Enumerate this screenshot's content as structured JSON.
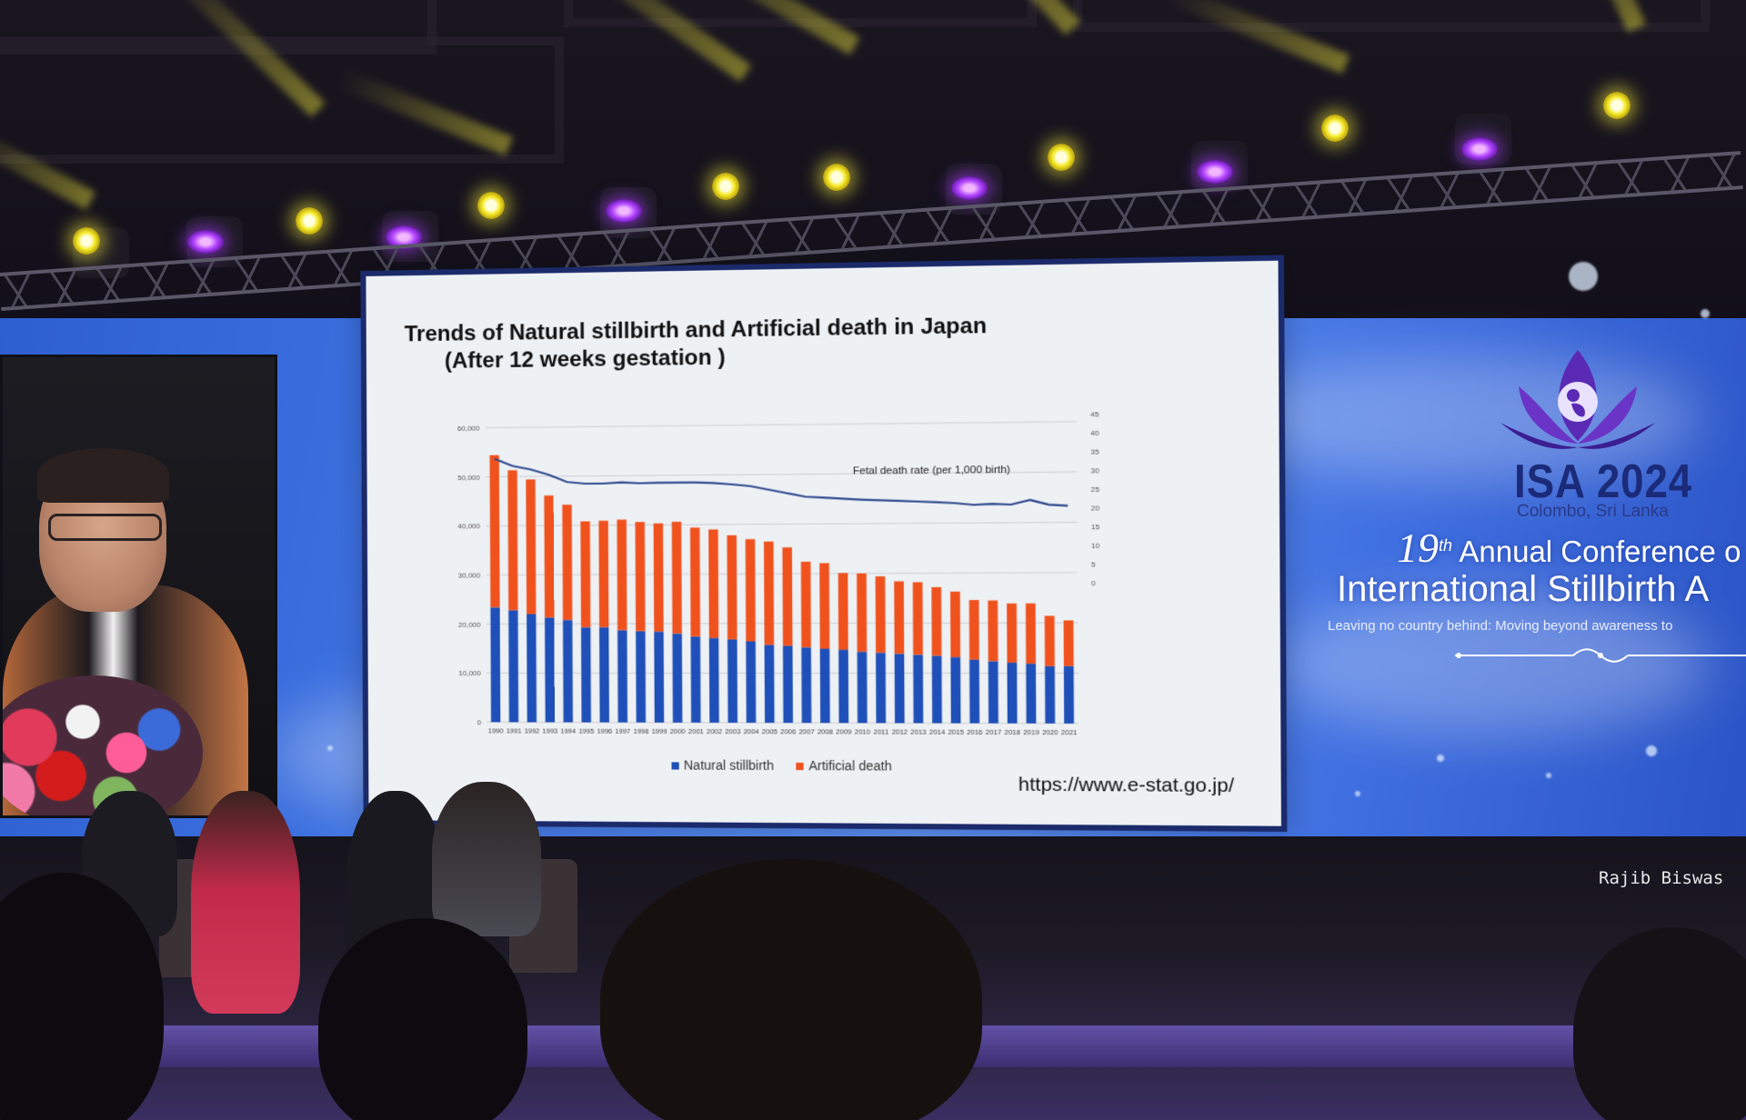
{
  "slide": {
    "title_line1": "Trends of Natural stillbirth and Artificial death in Japan",
    "title_line2": "(After 12 weeks gestation )",
    "source_url": "https://www.e-stat.go.jp/"
  },
  "branding": {
    "logo_text": "ISA 2024",
    "location": "Colombo, Sri Lanka",
    "conference_number": "19",
    "conference_suffix": "th",
    "conference_line1_rest": "Annual Conference o",
    "conference_line2": "International Stillbirth A",
    "tagline": "Leaving no country behind: Moving beyond awareness to"
  },
  "photo_credit": "Rajib Biswas",
  "colors": {
    "natural_stillbirth": "#1f4fb8",
    "artificial_death": "#f0521e",
    "rate_line": "#2f4a8f",
    "slide_border": "#1b2a6a"
  },
  "chart_data": {
    "type": "bar",
    "stacked": true,
    "categories": [
      "1990",
      "1991",
      "1992",
      "1993",
      "1994",
      "1995",
      "1996",
      "1997",
      "1998",
      "1999",
      "2000",
      "2001",
      "2002",
      "2003",
      "2004",
      "2005",
      "2006",
      "2007",
      "2008",
      "2009",
      "2010",
      "2011",
      "2012",
      "2013",
      "2014",
      "2015",
      "2016",
      "2017",
      "2018",
      "2019",
      "2020",
      "2021"
    ],
    "series": [
      {
        "name": "Natural stillbirth",
        "values": [
          23400,
          22800,
          22000,
          21300,
          20800,
          19300,
          19300,
          18700,
          18500,
          18400,
          18000,
          17400,
          17100,
          16800,
          16400,
          15700,
          15500,
          15200,
          14900,
          14700,
          14300,
          14100,
          13900,
          13700,
          13500,
          13200,
          12700,
          12400,
          12100,
          11900,
          11400,
          11400
        ]
      },
      {
        "name": "Artificial death",
        "values": [
          31000,
          28500,
          27400,
          24800,
          23400,
          21500,
          21600,
          22400,
          22100,
          21900,
          22600,
          22000,
          21900,
          21000,
          20600,
          20800,
          19800,
          17200,
          17200,
          15400,
          15700,
          15300,
          14500,
          14500,
          13700,
          13100,
          11900,
          12100,
          11800,
          12000,
          10000,
          9100
        ]
      }
    ],
    "line_series": {
      "annotation": "Fetal death rate (per 1,000 birth)",
      "values": [
        34.5,
        32.5,
        31.5,
        30,
        28,
        27.5,
        27.5,
        27.8,
        27.5,
        27.6,
        27.6,
        27.6,
        27.4,
        27,
        26.5,
        25.5,
        24.5,
        23.5,
        23.2,
        22.9,
        22.6,
        22.4,
        22.2,
        22,
        21.8,
        21.5,
        21,
        21.2,
        21,
        22.2,
        20.9,
        20.6
      ]
    },
    "y_left": {
      "ticks": [
        "0",
        "10,000",
        "20,000",
        "30,000",
        "40,000",
        "50,000",
        "60,000"
      ],
      "range": [
        0,
        60000
      ]
    },
    "y_right": {
      "ticks": [
        "0",
        "5",
        "10",
        "15",
        "20",
        "25",
        "30",
        "35",
        "40",
        "45"
      ],
      "range": [
        0,
        45
      ]
    },
    "legend_placement": "bottom"
  }
}
